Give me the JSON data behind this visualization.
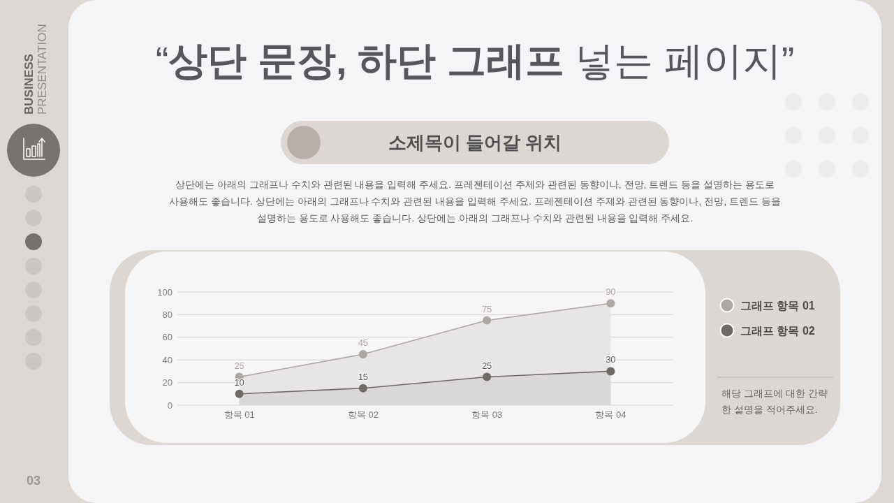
{
  "chart_data": {
    "type": "area",
    "title": "“**상단 문장, 하단 그래프** 넣는 페이지”",
    "subtitle": "소제목이 들어갈 위치",
    "categories": [
      "항목 01",
      "항목 02",
      "항목 03",
      "항목 04"
    ],
    "series": [
      {
        "name": "그래프 항목 01",
        "color": "#aea7a3",
        "values": [
          25,
          45,
          75,
          90
        ]
      },
      {
        "name": "그래프 항목 02",
        "color": "#6f6967",
        "values": [
          10,
          15,
          25,
          30
        ]
      }
    ],
    "ylim": [
      0,
      100
    ],
    "yticks": [
      0,
      20,
      40,
      60,
      80,
      100
    ],
    "grid": "y",
    "legend": "right",
    "marker": "circle",
    "data_labels": true,
    "annotations": [
      "상단에는 아래의 그래프나 수치와 관련된 내용을 입력해 주세요. 프레젠테이션 주제와 관련된 동향이나, 전망, 트렌드 등을 설명하는 용도로 사용해도 좋습니다. 상단에는 아래의 그래프나 수치와 관련된 내용을 입력해 주세요. 프레젠테이션 주제와 관련된 동향이나, 전망, 트렌드 등을 설명하는 용도로 사용해도 좋습니다. 상단에는 아래의 그래프나 수치와 관련된 내용을 입력해 주세요.",
      "해당 그래프에 대한 간략한 설명을 적어주세요.",
      "BUSINESS",
      "PRESENTATION",
      "03"
    ]
  }
}
